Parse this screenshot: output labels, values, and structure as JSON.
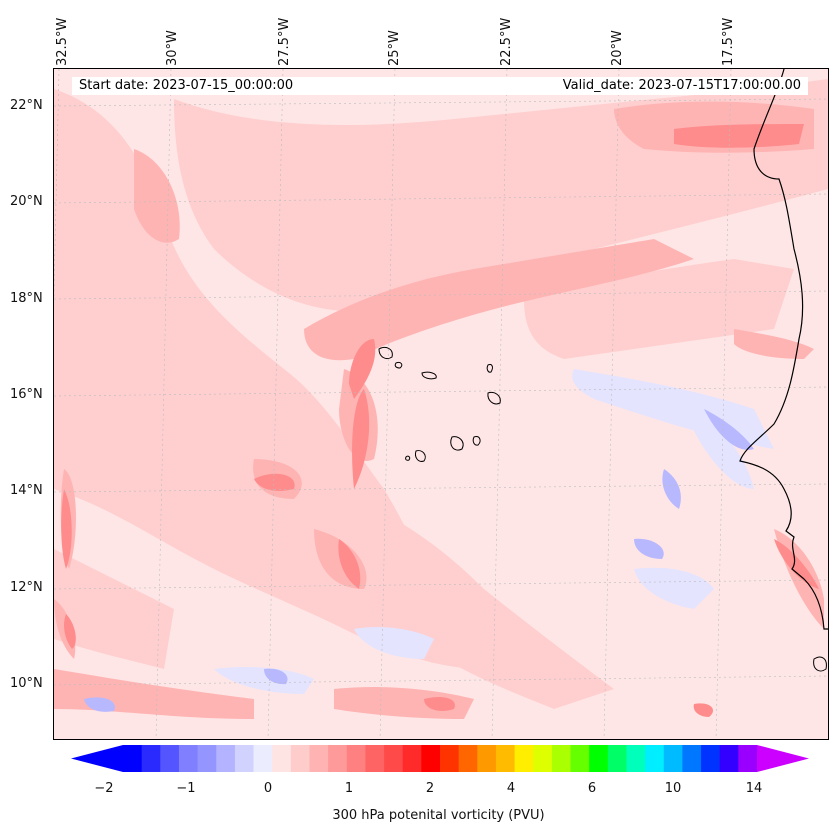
{
  "map": {
    "title_start": "Start date: 2023-07-15_00:00:00",
    "title_valid": "Valid_date: 2023-07-15T17:00:00.00",
    "longitude_labels": [
      "32.5°W",
      "30°W",
      "27.5°W",
      "25°W",
      "22.5°W",
      "20°W",
      "17.5°W"
    ],
    "latitude_labels": [
      "22°N",
      "20°N",
      "18°N",
      "16°N",
      "14°N",
      "12°N",
      "10°N"
    ],
    "field": "300 hPa potential vorticity",
    "region": "Cabo Verde and West African coast"
  },
  "colorbar": {
    "label": "300 hPa potenital vorticity (PVU)",
    "tick_labels": [
      "−2",
      "−1",
      "0",
      "1",
      "2",
      "4",
      "6",
      "10",
      "14"
    ],
    "colors": [
      "#0000ff",
      "#2a2aff",
      "#5555ff",
      "#7f7fff",
      "#9595ff",
      "#b3b3ff",
      "#d2d2ff",
      "#ececff",
      "#ffe4e4",
      "#ffcccc",
      "#ffb3b3",
      "#ff9a9a",
      "#ff8080",
      "#ff6464",
      "#ff4a4a",
      "#ff2a2a",
      "#ff0000",
      "#ff3300",
      "#ff6600",
      "#ff9900",
      "#ffbb00",
      "#ffee00",
      "#ddff00",
      "#aaff00",
      "#66ff00",
      "#00ff00",
      "#00ff66",
      "#00ffbb",
      "#00eeff",
      "#00bbff",
      "#0077ff",
      "#0033ff",
      "#3300ff",
      "#9900ff"
    ],
    "extend_min_color": "#0000ff",
    "extend_max_color": "#cc00ff"
  }
}
